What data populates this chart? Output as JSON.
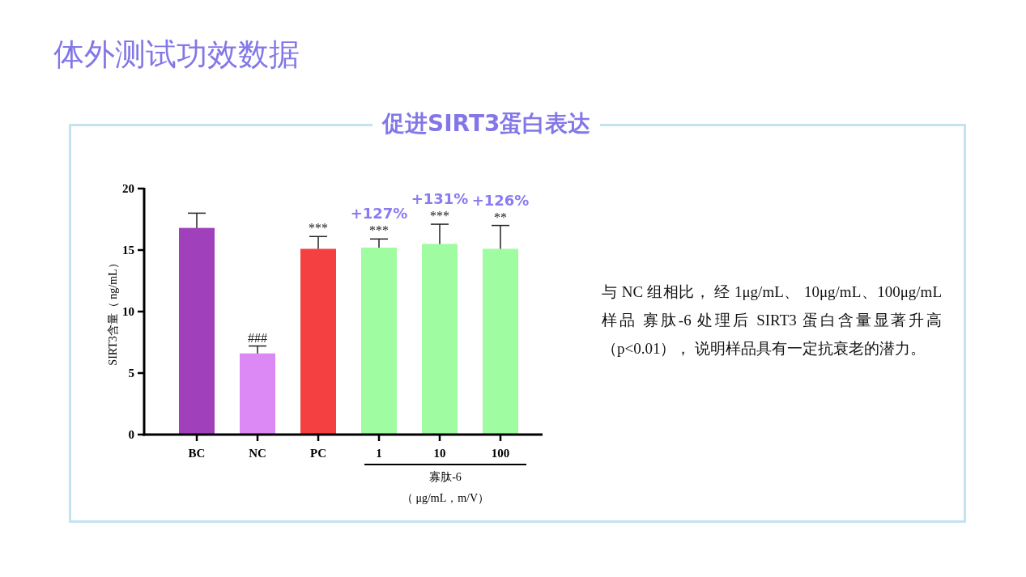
{
  "chart_data": {
    "type": "bar",
    "title": "体外测试功效数据",
    "subtitle": "促进SIRT3蛋白表达",
    "ylabel": "SIRT3含量（ ng/mL）",
    "categories": [
      "BC",
      "NC",
      "PC",
      "1",
      "10",
      "100"
    ],
    "values": [
      16.8,
      6.6,
      15.1,
      15.2,
      15.5,
      15.1
    ],
    "colors": [
      "#a040bb",
      "#dc88f5",
      "#f44040",
      "#a0fca0",
      "#a0fca0",
      "#a0fca0"
    ],
    "errors": [
      [
        16.8,
        18.0
      ],
      [
        6.6,
        7.2
      ],
      [
        15.1,
        16.1
      ],
      [
        15.2,
        15.9
      ],
      [
        15.5,
        17.1
      ],
      [
        15.1,
        17.0
      ]
    ],
    "ylim": [
      0,
      20
    ],
    "yticks": [
      0,
      5,
      10,
      15,
      20
    ],
    "grid": false,
    "annotations": [
      {
        "text": "###",
        "x": "NC",
        "y": 7.2
      },
      {
        "text": "***",
        "x": "PC",
        "y": 16.1
      },
      {
        "text": "***",
        "x": "1",
        "y": 15.9
      },
      {
        "text": "***",
        "x": "10",
        "y": 17.1
      },
      {
        "text": "**",
        "x": "100",
        "y": 17.0
      },
      {
        "text": "+127%",
        "x": "1",
        "y": 15.9
      },
      {
        "text": "+131%",
        "x": "10",
        "y": 17.1
      },
      {
        "text": "+126%",
        "x": "100",
        "y": 17.0
      },
      "寡肽-6",
      "（ μg/mL，m/V）",
      "与 NC 组相比， 经 1μg/mL、 10μg/mL、100μg/mL 样品 寡肽-6 处理后 SIRT3 蛋白含量显著升高（p<0.01）， 说明样品具有一定抗衰老的潜力。"
    ]
  }
}
